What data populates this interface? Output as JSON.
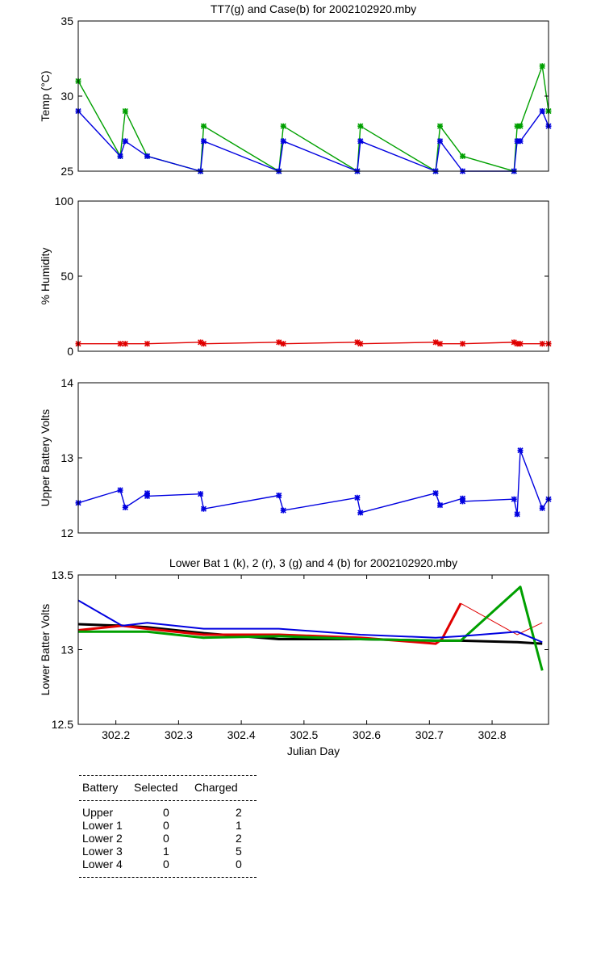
{
  "chart_data": [
    {
      "type": "line",
      "title": "TT7(g) and Case(b) for 2002102920.mby",
      "xlabel": "",
      "ylabel": "Temp  (°C)",
      "xlim": [
        302.14,
        302.89
      ],
      "ylim": [
        25,
        35
      ],
      "yticks": [
        "25",
        "30",
        "35"
      ],
      "series": [
        {
          "name": "TT7",
          "color": "#00a000",
          "marker": true,
          "x": [
            302.14,
            302.207,
            302.215,
            302.25,
            302.335,
            302.34,
            302.46,
            302.467,
            302.585,
            302.59,
            302.71,
            302.717,
            302.753,
            302.835,
            302.84,
            302.845,
            302.88,
            302.89
          ],
          "y": [
            31,
            26,
            29,
            26,
            25,
            28,
            25,
            28,
            25,
            28,
            25,
            28,
            26,
            25,
            28,
            28,
            32,
            29
          ]
        },
        {
          "name": "Case",
          "color": "#0000e0",
          "marker": true,
          "x": [
            302.14,
            302.207,
            302.215,
            302.25,
            302.335,
            302.34,
            302.46,
            302.467,
            302.585,
            302.59,
            302.71,
            302.717,
            302.753,
            302.835,
            302.84,
            302.845,
            302.88,
            302.89
          ],
          "y": [
            29,
            26,
            27,
            26,
            25,
            27,
            25,
            27,
            25,
            27,
            25,
            27,
            25,
            25,
            27,
            27,
            29,
            28
          ]
        }
      ]
    },
    {
      "type": "line",
      "title": "",
      "xlabel": "",
      "ylabel": "% Humidity",
      "xlim": [
        302.14,
        302.89
      ],
      "ylim": [
        0,
        100
      ],
      "yticks": [
        "0",
        "50",
        "100"
      ],
      "series": [
        {
          "name": "Humidity",
          "color": "#e00000",
          "marker": true,
          "x": [
            302.14,
            302.207,
            302.215,
            302.25,
            302.335,
            302.34,
            302.46,
            302.467,
            302.585,
            302.59,
            302.71,
            302.717,
            302.753,
            302.835,
            302.84,
            302.845,
            302.88,
            302.89
          ],
          "y": [
            5,
            5,
            5,
            5,
            6,
            5,
            6,
            5,
            6,
            5,
            6,
            5,
            5,
            6,
            5,
            5,
            5,
            5
          ]
        }
      ]
    },
    {
      "type": "line",
      "title": "",
      "xlabel": "",
      "ylabel": "Upper Battery Volts",
      "xlim": [
        302.14,
        302.89
      ],
      "ylim": [
        12,
        14
      ],
      "yticks": [
        "12",
        "13",
        "14"
      ],
      "series": [
        {
          "name": "Upper",
          "color": "#0000e0",
          "marker": true,
          "x": [
            302.14,
            302.207,
            302.215,
            302.25,
            302.25,
            302.335,
            302.34,
            302.46,
            302.467,
            302.585,
            302.59,
            302.71,
            302.717,
            302.753,
            302.753,
            302.835,
            302.84,
            302.845,
            302.88,
            302.89
          ],
          "y": [
            12.4,
            12.57,
            12.34,
            12.53,
            12.49,
            12.52,
            12.32,
            12.5,
            12.3,
            12.47,
            12.27,
            12.53,
            12.37,
            12.46,
            12.42,
            12.45,
            12.25,
            13.1,
            12.33,
            12.45
          ]
        }
      ]
    },
    {
      "type": "line",
      "title": "Lower Bat 1 (k), 2 (r), 3 (g) and 4 (b) for 2002102920.mby",
      "xlabel": "Julian Day",
      "ylabel": "Lower Batter Volts",
      "xlim": [
        302.14,
        302.89
      ],
      "ylim": [
        12.5,
        13.5
      ],
      "yticks": [
        "12.5",
        "13",
        "13.5"
      ],
      "xticks": [
        "302.2",
        "302.3",
        "302.4",
        "302.5",
        "302.6",
        "302.7",
        "302.8"
      ],
      "series": [
        {
          "name": "Lower 1",
          "color": "#000000",
          "width": 3,
          "x": [
            302.14,
            302.21,
            302.25,
            302.34,
            302.46,
            302.59,
            302.71,
            302.75,
            302.84,
            302.88
          ],
          "y": [
            13.17,
            13.16,
            13.15,
            13.11,
            13.07,
            13.07,
            13.06,
            13.06,
            13.05,
            13.04
          ]
        },
        {
          "name": "Lower 2",
          "color": "#e00000",
          "width": 3,
          "width_tail": 1,
          "x": [
            302.14,
            302.21,
            302.25,
            302.34,
            302.46,
            302.59,
            302.71,
            302.72,
            302.75,
            302.84,
            302.88
          ],
          "y": [
            13.13,
            13.16,
            13.14,
            13.1,
            13.1,
            13.08,
            13.04,
            13.07,
            13.31,
            13.1,
            13.18
          ]
        },
        {
          "name": "Lower 3",
          "color": "#00a000",
          "width": 3,
          "x": [
            302.14,
            302.21,
            302.25,
            302.34,
            302.46,
            302.59,
            302.71,
            302.75,
            302.845,
            302.88
          ],
          "y": [
            13.12,
            13.12,
            13.12,
            13.08,
            13.09,
            13.07,
            13.06,
            13.06,
            13.42,
            12.86
          ]
        },
        {
          "name": "Lower 4",
          "color": "#0000e0",
          "width": 2,
          "x": [
            302.14,
            302.21,
            302.25,
            302.34,
            302.46,
            302.59,
            302.71,
            302.75,
            302.84,
            302.88
          ],
          "y": [
            13.33,
            13.16,
            13.18,
            13.14,
            13.14,
            13.1,
            13.08,
            13.09,
            13.12,
            13.05
          ]
        }
      ]
    }
  ],
  "table": {
    "headers": [
      "Battery",
      "Selected",
      "Charged"
    ],
    "rows": [
      [
        "Upper",
        "0",
        "2"
      ],
      [
        "Lower 1",
        "0",
        "1"
      ],
      [
        "Lower 2",
        "0",
        "2"
      ],
      [
        "Lower 3",
        "1",
        "5"
      ],
      [
        "Lower 4",
        "0",
        "0"
      ]
    ]
  }
}
